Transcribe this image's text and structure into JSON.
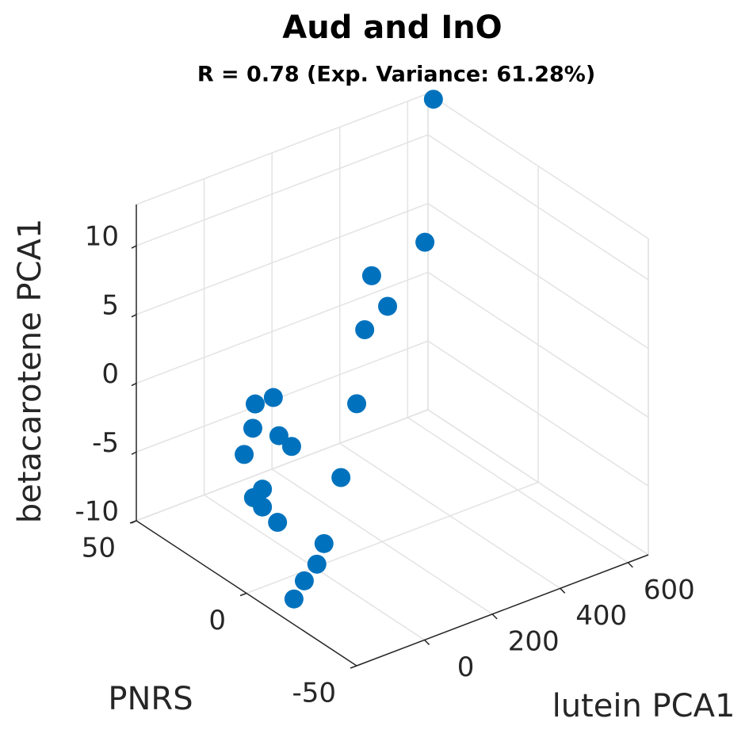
{
  "chart_data": {
    "type": "scatter3",
    "title": "Aud and InO",
    "subtitle": "R = 0.78 (Exp. Variance: 61.28%)",
    "xlabel": "lutein PCA1",
    "ylabel": "PNRS",
    "zlabel": "betacarotene PCA1",
    "x": [
      611,
      521,
      299,
      281,
      246,
      60,
      53,
      74,
      46,
      58,
      63,
      53,
      -19,
      -23,
      -17,
      -23,
      -11,
      -4,
      -25,
      -127,
      -190
    ],
    "y": [
      40,
      30,
      20,
      10,
      15,
      -10,
      35,
      30,
      35,
      25,
      20,
      40,
      -15,
      20,
      25,
      20,
      15,
      -5,
      -5,
      -15,
      -20
    ],
    "z": [
      14.1,
      5.6,
      6.3,
      5.3,
      3.4,
      2.4,
      -2.3,
      -1.5,
      -4.0,
      -3.6,
      -3.9,
      -6.5,
      -1.7,
      -6.2,
      -7.4,
      -7.5,
      -8.2,
      -7.7,
      -9.0,
      -8.2,
      -8.4
    ],
    "color": "#0072bd",
    "xlim": [
      -200,
      660
    ],
    "ylim": [
      -50,
      50
    ],
    "zlim": [
      -10,
      13
    ],
    "xticks": [
      0,
      200,
      400,
      600
    ],
    "yticks": [
      -50,
      0,
      50
    ],
    "zticks": [
      -10,
      -5,
      0,
      5,
      10
    ],
    "grid": true
  }
}
